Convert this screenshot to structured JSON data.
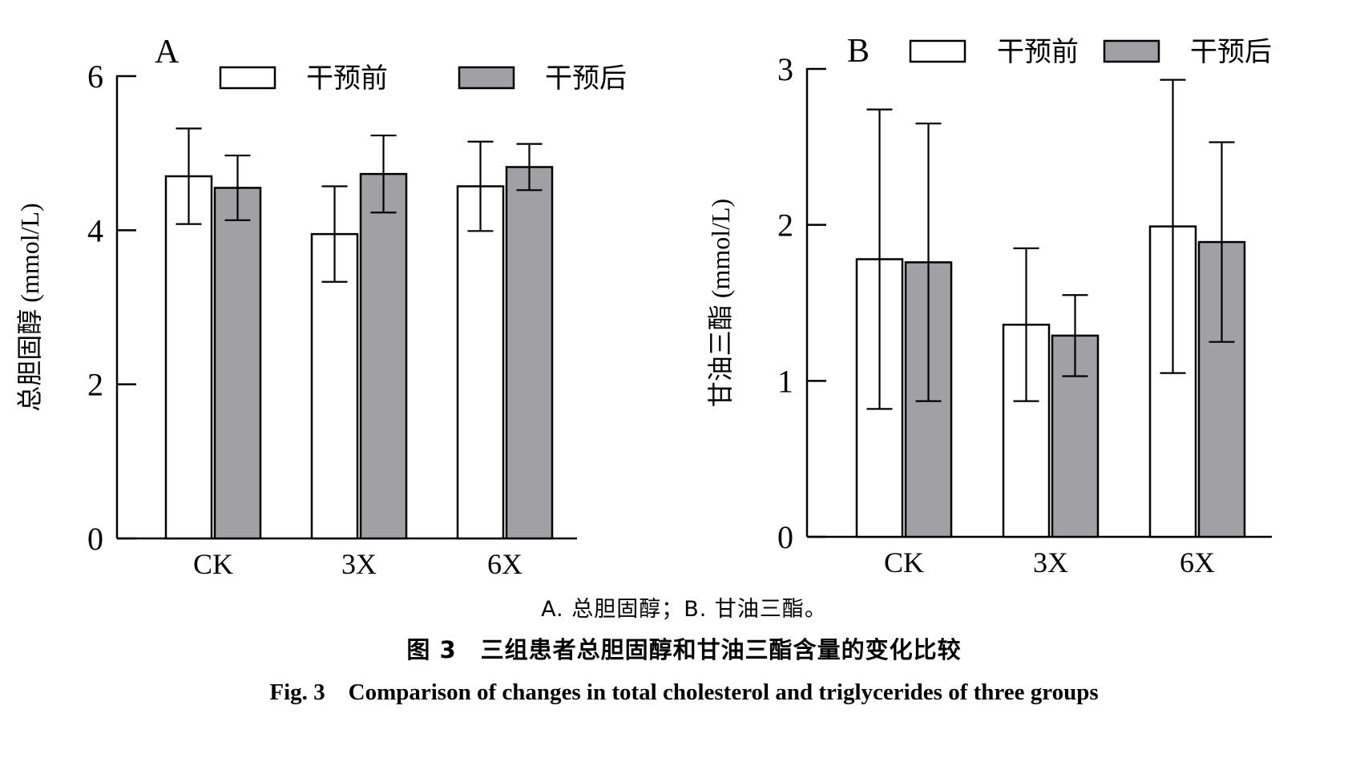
{
  "chart_data": [
    {
      "type": "bar",
      "panel_label": "A",
      "ylabel": "总胆固醇 (mmol/L)",
      "ylim": [
        0,
        6
      ],
      "yticks": [
        "0",
        "2",
        "4",
        "6"
      ],
      "categories": [
        "CK",
        "3X",
        "6X"
      ],
      "series": [
        {
          "name": "干预前",
          "values": [
            4.7,
            3.95,
            4.57
          ],
          "errors": [
            0.62,
            0.62,
            0.58
          ],
          "color": "#ffffff"
        },
        {
          "name": "干预后",
          "values": [
            4.55,
            4.73,
            4.82
          ],
          "errors": [
            0.42,
            0.5,
            0.3
          ],
          "color": "#a0a0a5"
        }
      ],
      "legend": "top"
    },
    {
      "type": "bar",
      "panel_label": "B",
      "ylabel": "甘油三酯 (mmol/L)",
      "ylim": [
        0,
        3
      ],
      "yticks": [
        "0",
        "1",
        "2",
        "3"
      ],
      "categories": [
        "CK",
        "3X",
        "6X"
      ],
      "series": [
        {
          "name": "干预前",
          "values": [
            1.78,
            1.36,
            1.99
          ],
          "errors": [
            0.96,
            0.49,
            0.94
          ],
          "color": "#ffffff"
        },
        {
          "name": "干预后",
          "values": [
            1.76,
            1.29,
            1.89
          ],
          "errors": [
            0.89,
            0.26,
            0.64
          ],
          "color": "#a0a0a5"
        }
      ],
      "legend": "top"
    }
  ],
  "captions": {
    "sub": "A. 总胆固醇；B. 甘油三酯。",
    "zh": "图 3　三组患者总胆固醇和甘油三酯含量的变化比较",
    "en": "Fig. 3　Comparison of changes in total cholesterol and triglycerides of three groups"
  }
}
